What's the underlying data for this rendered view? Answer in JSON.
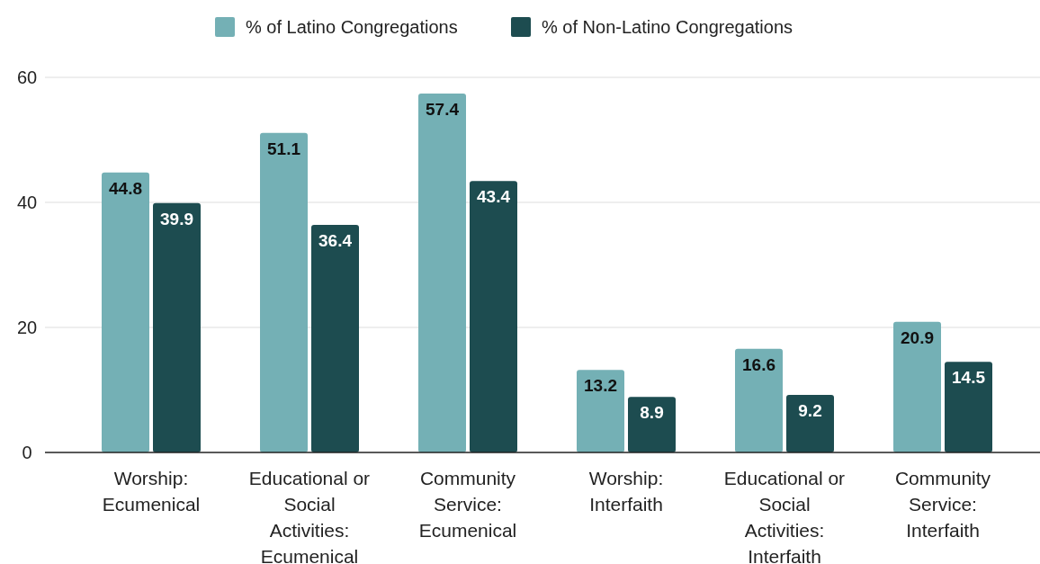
{
  "chart_data": {
    "type": "bar",
    "categories": [
      "Worship: Ecumenical",
      "Educational or Social Activities: Ecumenical",
      "Community Service: Ecumenical",
      "Worship: Interfaith",
      "Educational or Social Activities: Interfaith",
      "Community Service: Interfaith"
    ],
    "series": [
      {
        "name": "% of Latino Congregations",
        "color": "#74b0b5",
        "values": [
          44.8,
          51.1,
          57.4,
          13.2,
          16.6,
          20.9
        ]
      },
      {
        "name": "% of Non-Latino Congregations",
        "color": "#1d4c50",
        "values": [
          39.9,
          36.4,
          43.4,
          8.9,
          9.2,
          14.5
        ]
      }
    ],
    "ylim": [
      0,
      60
    ],
    "yticks": [
      0,
      20,
      40,
      60
    ],
    "grid": "y",
    "legend": "top",
    "data_labels": true
  }
}
